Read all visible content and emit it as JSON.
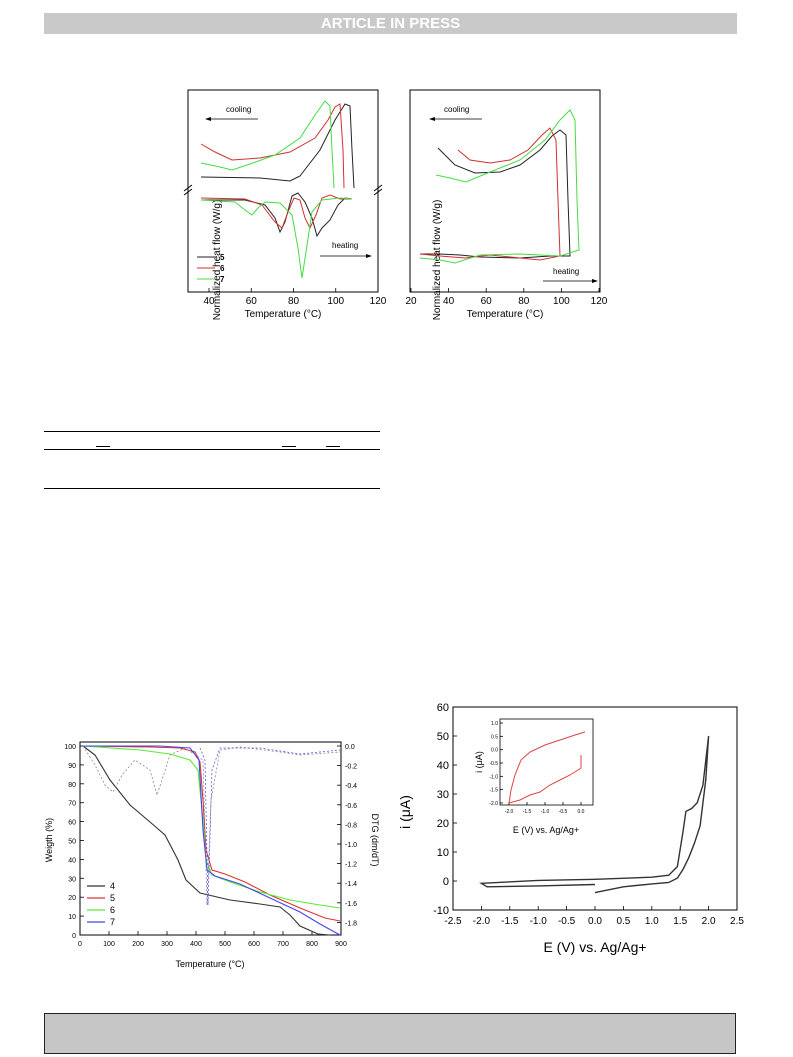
{
  "header": {
    "banner": "ARTICLE IN PRESS"
  },
  "dsc_figure": {
    "left": {
      "ylabel": "Normalized heat flow (W/g)",
      "xlabel": "Temperature (°C)",
      "xticks": [
        "40",
        "60",
        "80",
        "100",
        "120"
      ],
      "cooling_label": "cooling",
      "heating_label": "heating",
      "legend": [
        "5",
        "6",
        "7"
      ]
    },
    "right": {
      "ylabel": "Normalized heat flow (W/g)",
      "xlabel": "Temperature (°C)",
      "xticks": [
        "20",
        "40",
        "60",
        "80",
        "100",
        "120"
      ],
      "cooling_label": "cooling",
      "heating_label": "heating"
    },
    "colors": {
      "5": "#222222",
      "6": "#d03030",
      "7": "#44dd44"
    }
  },
  "tga_figure": {
    "ylabel": "Weigth (%)",
    "y2label": "DTG (dm/dT)",
    "xlabel": "Temperature (°C)",
    "yticks": [
      "0",
      "10",
      "20",
      "30",
      "40",
      "50",
      "60",
      "70",
      "80",
      "90",
      "100"
    ],
    "y2ticks": [
      "0.0",
      "-0.2",
      "-0.4",
      "-0.6",
      "-0.8",
      "-1.0",
      "-1.2",
      "-1.4",
      "-1.6",
      "-1.8"
    ],
    "xticks": [
      "0",
      "100",
      "200",
      "300",
      "400",
      "500",
      "600",
      "700",
      "800",
      "900"
    ],
    "legend": [
      {
        "label": "4",
        "color": "#333333"
      },
      {
        "label": "5",
        "color": "#dd3333"
      },
      {
        "label": "6",
        "color": "#55ee33"
      },
      {
        "label": "7",
        "color": "#4444ee"
      }
    ]
  },
  "chart_data": [
    {
      "type": "line",
      "xlabel": "E (V) vs. Ag/Ag+",
      "ylabel": "i (μA)",
      "xlim": [
        -2.5,
        2.5
      ],
      "ylim": [
        -10,
        60
      ],
      "xticks": [
        "-2.5",
        "-2.0",
        "-1.5",
        "-1.0",
        "-0.5",
        "0.0",
        "0.5",
        "1.0",
        "1.5",
        "2.0",
        "2.5"
      ],
      "yticks": [
        "-10",
        "0",
        "10",
        "20",
        "30",
        "40",
        "50",
        "60"
      ],
      "series": [
        {
          "values_outer": [
            [
              0.0,
              -4
            ],
            [
              0.5,
              -2
            ],
            [
              1.0,
              -1
            ],
            [
              1.3,
              -0.5
            ],
            [
              1.45,
              1
            ],
            [
              1.55,
              4
            ],
            [
              1.65,
              8
            ],
            [
              1.75,
              13
            ],
            [
              1.85,
              19
            ],
            [
              1.95,
              35
            ],
            [
              2.0,
              50
            ]
          ],
          "values_return": [
            [
              2.0,
              50
            ],
            [
              1.9,
              33
            ],
            [
              1.8,
              27
            ],
            [
              1.7,
              25
            ],
            [
              1.6,
              24
            ],
            [
              1.55,
              17
            ],
            [
              1.45,
              5
            ],
            [
              1.3,
              2
            ],
            [
              1.0,
              1.3
            ],
            [
              0.0,
              0.6
            ],
            [
              -1.0,
              0.2
            ],
            [
              -2.0,
              -0.8
            ],
            [
              -1.9,
              -2
            ],
            [
              -1.0,
              -1.7
            ],
            [
              0.0,
              -1.2
            ]
          ]
        }
      ],
      "inset": {
        "xlabel": "E (V) vs. Ag/Ag+",
        "ylabel": "i (μA)",
        "xlim": [
          -2.0,
          0.1
        ],
        "ylim": [
          -2.0,
          1.0
        ],
        "xticks": [
          "-2.0",
          "-1.5",
          "-1.0",
          "-0.5",
          "0.0"
        ],
        "yticks": [
          "1.0",
          "0.5",
          "0.0",
          "-0.5",
          "-1.0",
          "-1.5",
          "-2.0"
        ],
        "color": "#dd4444"
      }
    }
  ]
}
